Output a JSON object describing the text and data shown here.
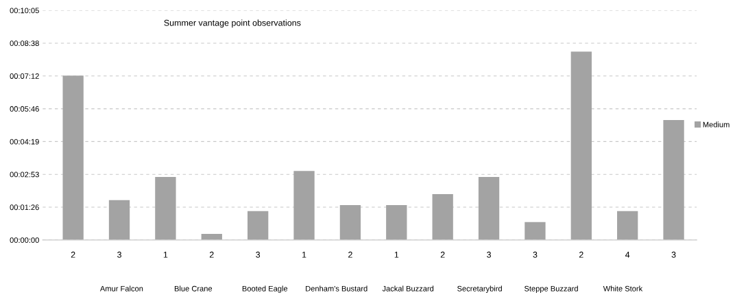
{
  "chart_data": {
    "type": "bar",
    "title": "Summer vantage point observations",
    "categories": [
      "2",
      "3",
      "1",
      "2",
      "3",
      "1",
      "2",
      "1",
      "2",
      "3",
      "3",
      "2",
      "4",
      "3"
    ],
    "series": [
      {
        "name": "Medium",
        "color": "#a3a3a3",
        "values": [
          433,
          105,
          166,
          16,
          76,
          182,
          92,
          92,
          121,
          166,
          47,
          496,
          76,
          316
        ]
      }
    ],
    "ylim": [
      0,
      604.8
    ],
    "yticks": [
      {
        "value": 0,
        "label": "00:00:00"
      },
      {
        "value": 86.4,
        "label": "00:01:26"
      },
      {
        "value": 172.8,
        "label": "00:02:53"
      },
      {
        "value": 259.2,
        "label": "00:04:19"
      },
      {
        "value": 345.6,
        "label": "00:05:46"
      },
      {
        "value": 432,
        "label": "00:07:12"
      },
      {
        "value": 518.4,
        "label": "00:08:38"
      },
      {
        "value": 604.8,
        "label": "00:10:05"
      }
    ],
    "grid": "y",
    "legend": "right",
    "annotations": [
      "Amur Falcon",
      "Blue Crane",
      "Booted Eagle",
      "Denham's Bustard",
      "Jackal Buzzard",
      "Secretarybird",
      "Steppe Buzzard",
      "White Stork"
    ]
  }
}
